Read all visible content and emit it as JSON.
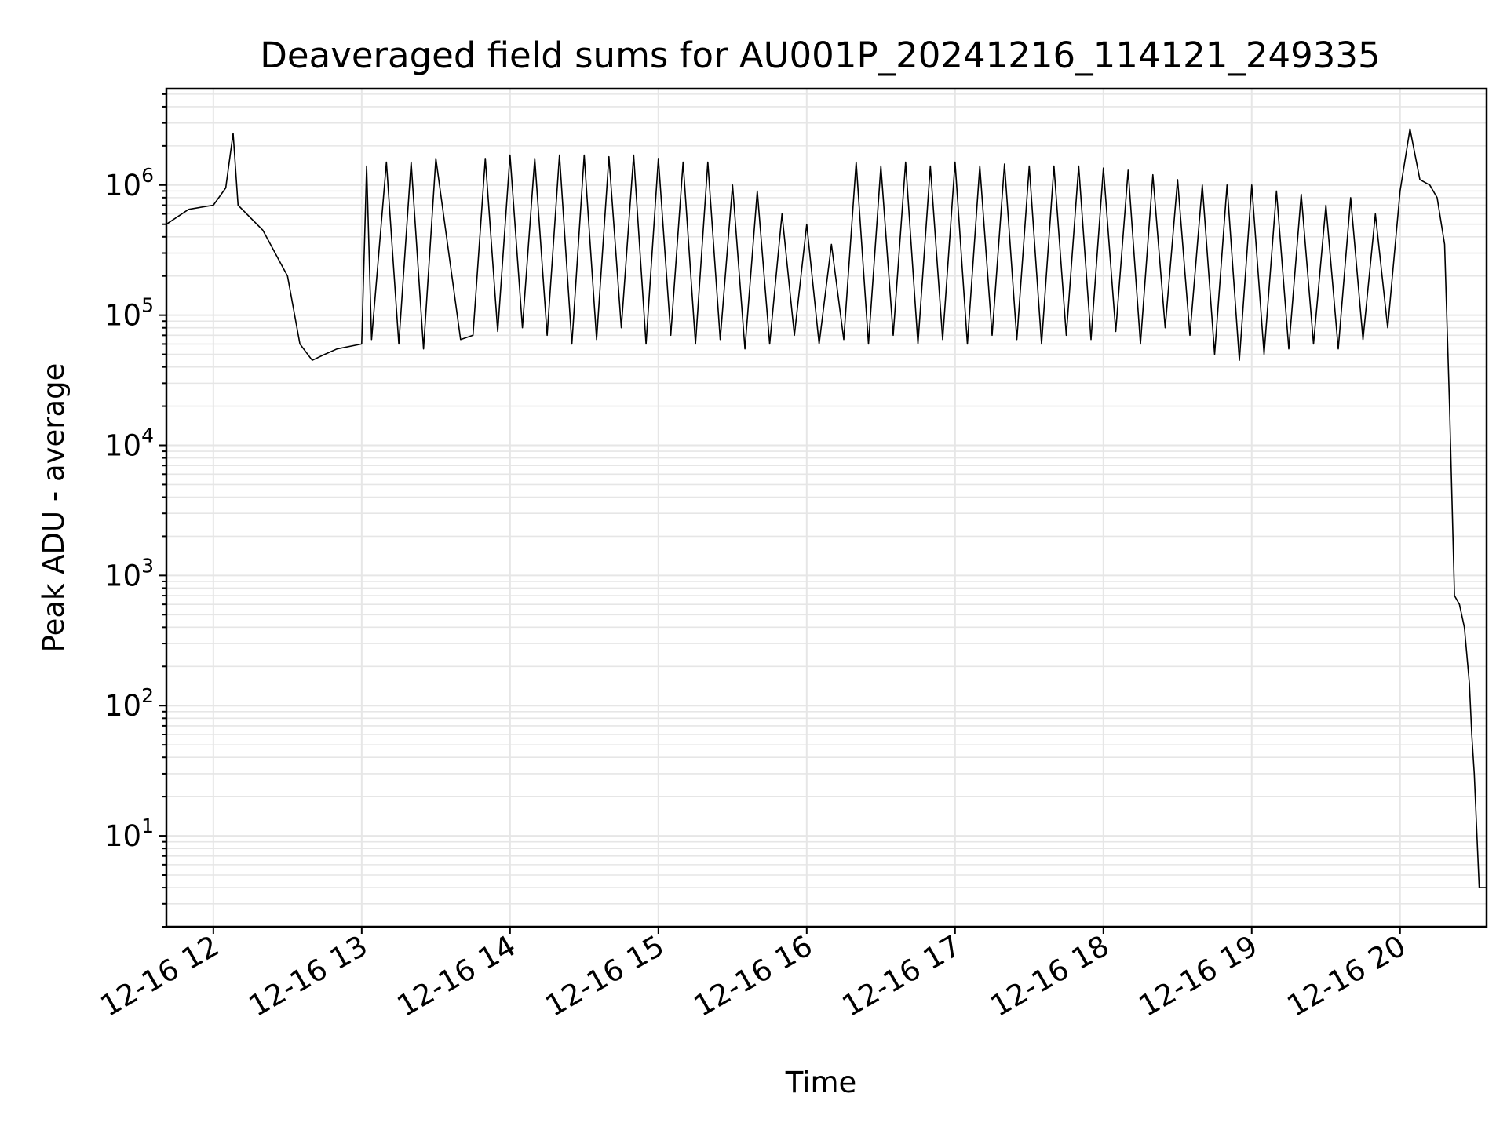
{
  "chart_data": {
    "type": "line",
    "title": "Deaveraged field sums for AU001P_20241216_114121_249335",
    "xlabel": "Time",
    "ylabel": "Peak ADU - average",
    "yscale": "log",
    "ylim": [
      2,
      5500000
    ],
    "xlim": [
      "2024-12-16 11:41",
      "2024-12-16 20:35"
    ],
    "x_ticks": [
      {
        "label": "12-16 12",
        "time": "2024-12-16 12:00"
      },
      {
        "label": "12-16 13",
        "time": "2024-12-16 13:00"
      },
      {
        "label": "12-16 14",
        "time": "2024-12-16 14:00"
      },
      {
        "label": "12-16 15",
        "time": "2024-12-16 15:00"
      },
      {
        "label": "12-16 16",
        "time": "2024-12-16 16:00"
      },
      {
        "label": "12-16 17",
        "time": "2024-12-16 17:00"
      },
      {
        "label": "12-16 18",
        "time": "2024-12-16 18:00"
      },
      {
        "label": "12-16 19",
        "time": "2024-12-16 19:00"
      },
      {
        "label": "12-16 20",
        "time": "2024-12-16 20:00"
      }
    ],
    "y_ticks": [
      {
        "base": "10",
        "exp": "1",
        "value": 10
      },
      {
        "base": "10",
        "exp": "2",
        "value": 100
      },
      {
        "base": "10",
        "exp": "3",
        "value": 1000
      },
      {
        "base": "10",
        "exp": "4",
        "value": 10000
      },
      {
        "base": "10",
        "exp": "5",
        "value": 100000
      },
      {
        "base": "10",
        "exp": "6",
        "value": 1000000
      }
    ],
    "grid": true,
    "line_color": "#000000",
    "grid_color": "#e6e6e6",
    "series": [
      {
        "x": [
          "2024-12-16 11:41",
          "2024-12-16 11:50",
          "2024-12-16 12:00",
          "2024-12-16 12:05",
          "2024-12-16 12:08",
          "2024-12-16 12:10",
          "2024-12-16 12:20",
          "2024-12-16 12:30",
          "2024-12-16 12:35",
          "2024-12-16 12:40",
          "2024-12-16 12:45",
          "2024-12-16 12:50",
          "2024-12-16 13:00",
          "2024-12-16 13:02",
          "2024-12-16 13:04",
          "2024-12-16 13:10",
          "2024-12-16 13:15",
          "2024-12-16 13:20",
          "2024-12-16 13:25",
          "2024-12-16 13:30",
          "2024-12-16 13:40",
          "2024-12-16 13:45",
          "2024-12-16 13:50",
          "2024-12-16 13:55",
          "2024-12-16 14:00",
          "2024-12-16 14:05",
          "2024-12-16 14:10",
          "2024-12-16 14:15",
          "2024-12-16 14:20",
          "2024-12-16 14:25",
          "2024-12-16 14:30",
          "2024-12-16 14:35",
          "2024-12-16 14:40",
          "2024-12-16 14:45",
          "2024-12-16 14:50",
          "2024-12-16 14:55",
          "2024-12-16 15:00",
          "2024-12-16 15:05",
          "2024-12-16 15:10",
          "2024-12-16 15:15",
          "2024-12-16 15:20",
          "2024-12-16 15:25",
          "2024-12-16 15:30",
          "2024-12-16 15:35",
          "2024-12-16 15:40",
          "2024-12-16 15:45",
          "2024-12-16 15:50",
          "2024-12-16 15:55",
          "2024-12-16 16:00",
          "2024-12-16 16:05",
          "2024-12-16 16:10",
          "2024-12-16 16:15",
          "2024-12-16 16:20",
          "2024-12-16 16:25",
          "2024-12-16 16:30",
          "2024-12-16 16:35",
          "2024-12-16 16:40",
          "2024-12-16 16:45",
          "2024-12-16 16:50",
          "2024-12-16 16:55",
          "2024-12-16 17:00",
          "2024-12-16 17:05",
          "2024-12-16 17:10",
          "2024-12-16 17:15",
          "2024-12-16 17:20",
          "2024-12-16 17:25",
          "2024-12-16 17:30",
          "2024-12-16 17:35",
          "2024-12-16 17:40",
          "2024-12-16 17:45",
          "2024-12-16 17:50",
          "2024-12-16 17:55",
          "2024-12-16 18:00",
          "2024-12-16 18:05",
          "2024-12-16 18:10",
          "2024-12-16 18:15",
          "2024-12-16 18:20",
          "2024-12-16 18:25",
          "2024-12-16 18:30",
          "2024-12-16 18:35",
          "2024-12-16 18:40",
          "2024-12-16 18:45",
          "2024-12-16 18:50",
          "2024-12-16 18:55",
          "2024-12-16 19:00",
          "2024-12-16 19:05",
          "2024-12-16 19:10",
          "2024-12-16 19:15",
          "2024-12-16 19:20",
          "2024-12-16 19:25",
          "2024-12-16 19:30",
          "2024-12-16 19:35",
          "2024-12-16 19:40",
          "2024-12-16 19:45",
          "2024-12-16 19:50",
          "2024-12-16 19:55",
          "2024-12-16 20:00",
          "2024-12-16 20:04",
          "2024-12-16 20:08",
          "2024-12-16 20:12",
          "2024-12-16 20:15",
          "2024-12-16 20:18",
          "2024-12-16 20:20",
          "2024-12-16 20:22",
          "2024-12-16 20:24",
          "2024-12-16 20:26",
          "2024-12-16 20:28",
          "2024-12-16 20:29",
          "2024-12-16 20:30",
          "2024-12-16 20:32",
          "2024-12-16 20:35"
        ],
        "y": [
          500000,
          650000,
          700000,
          950000,
          2500000,
          700000,
          450000,
          200000,
          60000,
          45000,
          50000,
          55000,
          60000,
          1400000,
          65000,
          1500000,
          60000,
          1500000,
          55000,
          1600000,
          65000,
          70000,
          1600000,
          75000,
          1700000,
          80000,
          1600000,
          70000,
          1700000,
          60000,
          1700000,
          65000,
          1650000,
          80000,
          1700000,
          60000,
          1600000,
          70000,
          1500000,
          60000,
          1500000,
          65000,
          1000000,
          55000,
          900000,
          60000,
          600000,
          70000,
          500000,
          60000,
          350000,
          65000,
          1500000,
          60000,
          1400000,
          70000,
          1500000,
          60000,
          1400000,
          65000,
          1500000,
          60000,
          1400000,
          70000,
          1450000,
          65000,
          1400000,
          60000,
          1400000,
          70000,
          1400000,
          65000,
          1350000,
          75000,
          1300000,
          60000,
          1200000,
          80000,
          1100000,
          70000,
          1000000,
          50000,
          1000000,
          45000,
          1000000,
          50000,
          900000,
          55000,
          850000,
          60000,
          700000,
          55000,
          800000,
          65000,
          600000,
          80000,
          900000,
          2700000,
          1100000,
          1000000,
          800000,
          350000,
          20000,
          700,
          600,
          400,
          150,
          60,
          30,
          4,
          4
        ]
      }
    ]
  }
}
